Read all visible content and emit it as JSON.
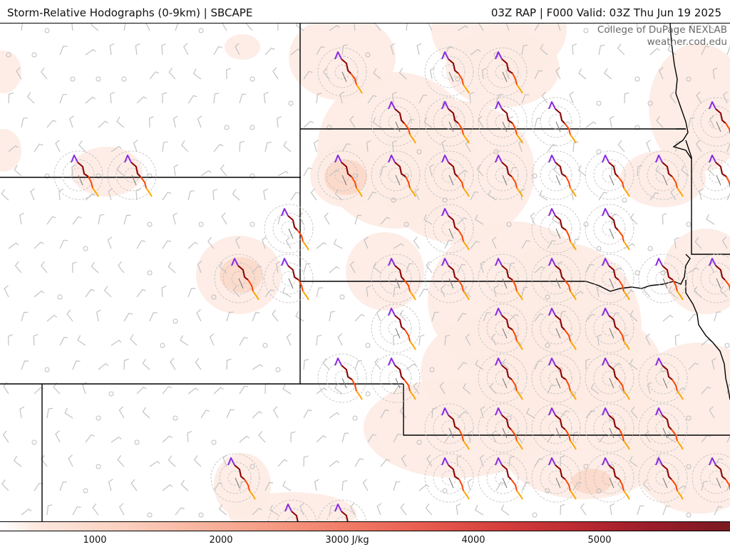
{
  "header": {
    "title_left": "Storm-Relative Hodographs (0-9km) | SBCAPE",
    "title_right": "03Z RAP | F000 Valid: 03Z Thu Jun 19 2025"
  },
  "credit": {
    "line1": "College of DuPage NEXLAB",
    "line2": "weather.cod.edu"
  },
  "colorbar": {
    "labels": [
      "1000",
      "2000",
      "3000 J/kg",
      "4000",
      "5000"
    ],
    "colors": [
      "#fde8df",
      "#fbd2c2",
      "#f9b8a3",
      "#f69c85",
      "#f17d68",
      "#e85d50",
      "#d6403d",
      "#bc2a31",
      "#9b1c2a",
      "#7a1a22"
    ]
  },
  "hodograph_colors": {
    "layer_0_1km": "#8a2be2",
    "layer_1_3km": "#8b0000",
    "layer_3_6km": "#ff4500",
    "layer_6_9km": "#ffa500"
  }
}
